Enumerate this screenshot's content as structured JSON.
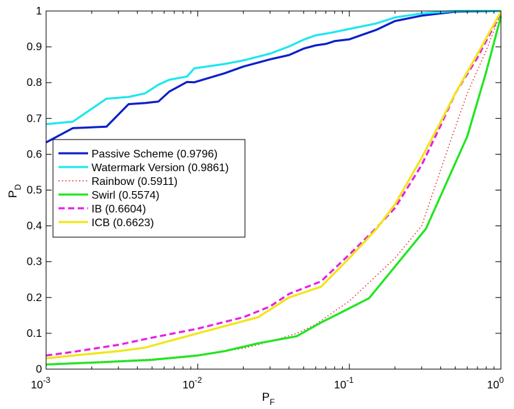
{
  "chart_data": {
    "type": "line",
    "title": "",
    "xlabel": "P",
    "xlabel_sub": "F",
    "ylabel": "P",
    "ylabel_sub": "D",
    "xscale": "log",
    "xlim": [
      0.001,
      1
    ],
    "ylim": [
      0,
      1
    ],
    "x_tick_labels": [
      {
        "value": 0.001,
        "base": "10",
        "exp": "-3"
      },
      {
        "value": 0.01,
        "base": "10",
        "exp": "-2"
      },
      {
        "value": 0.1,
        "base": "10",
        "exp": "-1"
      },
      {
        "value": 1,
        "base": "10",
        "exp": "0"
      }
    ],
    "y_ticks": [
      0,
      0.1,
      0.2,
      0.3,
      0.4,
      0.5,
      0.6,
      0.7,
      0.8,
      0.9,
      1
    ],
    "y_tick_labels": [
      "0",
      "0.1",
      "0.2",
      "0.3",
      "0.4",
      "0.5",
      "0.6",
      "0.7",
      "0.8",
      "0.9",
      "1"
    ],
    "grid": false,
    "legend_position": "left-middle",
    "series": [
      {
        "name": "Passive Scheme (0.9796)",
        "color": "#0a1ec8",
        "style": "solid",
        "points": [
          [
            0.001,
            0.633
          ],
          [
            0.0015,
            0.673
          ],
          [
            0.0025,
            0.677
          ],
          [
            0.0035,
            0.74
          ],
          [
            0.0045,
            0.743
          ],
          [
            0.0055,
            0.747
          ],
          [
            0.0065,
            0.775
          ],
          [
            0.0085,
            0.802
          ],
          [
            0.0095,
            0.801
          ],
          [
            0.015,
            0.826
          ],
          [
            0.02,
            0.845
          ],
          [
            0.03,
            0.865
          ],
          [
            0.04,
            0.877
          ],
          [
            0.05,
            0.895
          ],
          [
            0.06,
            0.904
          ],
          [
            0.07,
            0.908
          ],
          [
            0.08,
            0.916
          ],
          [
            0.1,
            0.921
          ],
          [
            0.15,
            0.947
          ],
          [
            0.2,
            0.972
          ],
          [
            0.3,
            0.987
          ],
          [
            0.5,
            0.998
          ],
          [
            1,
            1.0
          ]
        ]
      },
      {
        "name": "Watermark Version (0.9861)",
        "color": "#1ee6f0",
        "style": "solid",
        "points": [
          [
            0.001,
            0.684
          ],
          [
            0.0015,
            0.691
          ],
          [
            0.0025,
            0.755
          ],
          [
            0.0035,
            0.76
          ],
          [
            0.0045,
            0.77
          ],
          [
            0.0055,
            0.794
          ],
          [
            0.0065,
            0.808
          ],
          [
            0.0085,
            0.817
          ],
          [
            0.0095,
            0.84
          ],
          [
            0.015,
            0.852
          ],
          [
            0.02,
            0.862
          ],
          [
            0.03,
            0.881
          ],
          [
            0.04,
            0.901
          ],
          [
            0.05,
            0.92
          ],
          [
            0.06,
            0.932
          ],
          [
            0.075,
            0.939
          ],
          [
            0.1,
            0.95
          ],
          [
            0.15,
            0.965
          ],
          [
            0.2,
            0.982
          ],
          [
            0.3,
            0.993
          ],
          [
            0.5,
            1.0
          ],
          [
            1,
            1.0
          ]
        ]
      },
      {
        "name": "Rainbow (0.5911)",
        "color": "#e01818",
        "style": "dotted",
        "points": [
          [
            0.001,
            0.014
          ],
          [
            0.002,
            0.02
          ],
          [
            0.005,
            0.028
          ],
          [
            0.01,
            0.04
          ],
          [
            0.02,
            0.058
          ],
          [
            0.03,
            0.077
          ],
          [
            0.045,
            0.1
          ],
          [
            0.06,
            0.125
          ],
          [
            0.1,
            0.19
          ],
          [
            0.15,
            0.26
          ],
          [
            0.2,
            0.31
          ],
          [
            0.3,
            0.4
          ],
          [
            0.45,
            0.62
          ],
          [
            0.6,
            0.77
          ],
          [
            0.8,
            0.89
          ],
          [
            1,
            0.995
          ]
        ]
      },
      {
        "name": "Swirl (0.5574)",
        "color": "#1ee61e",
        "style": "solid",
        "points": [
          [
            0.001,
            0.013
          ],
          [
            0.002,
            0.018
          ],
          [
            0.005,
            0.026
          ],
          [
            0.01,
            0.038
          ],
          [
            0.015,
            0.05
          ],
          [
            0.025,
            0.072
          ],
          [
            0.045,
            0.092
          ],
          [
            0.065,
            0.13
          ],
          [
            0.09,
            0.16
          ],
          [
            0.135,
            0.198
          ],
          [
            0.32,
            0.392
          ],
          [
            0.6,
            0.65
          ],
          [
            0.8,
            0.83
          ],
          [
            1,
            0.985
          ]
        ]
      },
      {
        "name": "IB (0.6604)",
        "color": "#e61ee6",
        "style": "dashed",
        "points": [
          [
            0.001,
            0.038
          ],
          [
            0.0015,
            0.048
          ],
          [
            0.003,
            0.068
          ],
          [
            0.005,
            0.088
          ],
          [
            0.01,
            0.113
          ],
          [
            0.02,
            0.145
          ],
          [
            0.03,
            0.175
          ],
          [
            0.04,
            0.21
          ],
          [
            0.065,
            0.245
          ],
          [
            0.1,
            0.32
          ],
          [
            0.15,
            0.393
          ],
          [
            0.2,
            0.45
          ],
          [
            0.3,
            0.57
          ],
          [
            0.4,
            0.68
          ],
          [
            0.5,
            0.77
          ],
          [
            0.7,
            0.87
          ],
          [
            1,
            0.995
          ]
        ]
      },
      {
        "name": "ICB (0.6623)",
        "color": "#f0e614",
        "style": "solid",
        "points": [
          [
            0.001,
            0.03
          ],
          [
            0.0015,
            0.038
          ],
          [
            0.003,
            0.05
          ],
          [
            0.0045,
            0.06
          ],
          [
            0.01,
            0.1
          ],
          [
            0.025,
            0.145
          ],
          [
            0.04,
            0.2
          ],
          [
            0.065,
            0.23
          ],
          [
            0.1,
            0.31
          ],
          [
            0.15,
            0.39
          ],
          [
            0.2,
            0.46
          ],
          [
            0.3,
            0.59
          ],
          [
            0.4,
            0.69
          ],
          [
            0.5,
            0.77
          ],
          [
            0.7,
            0.88
          ],
          [
            1,
            0.998
          ]
        ]
      }
    ]
  }
}
